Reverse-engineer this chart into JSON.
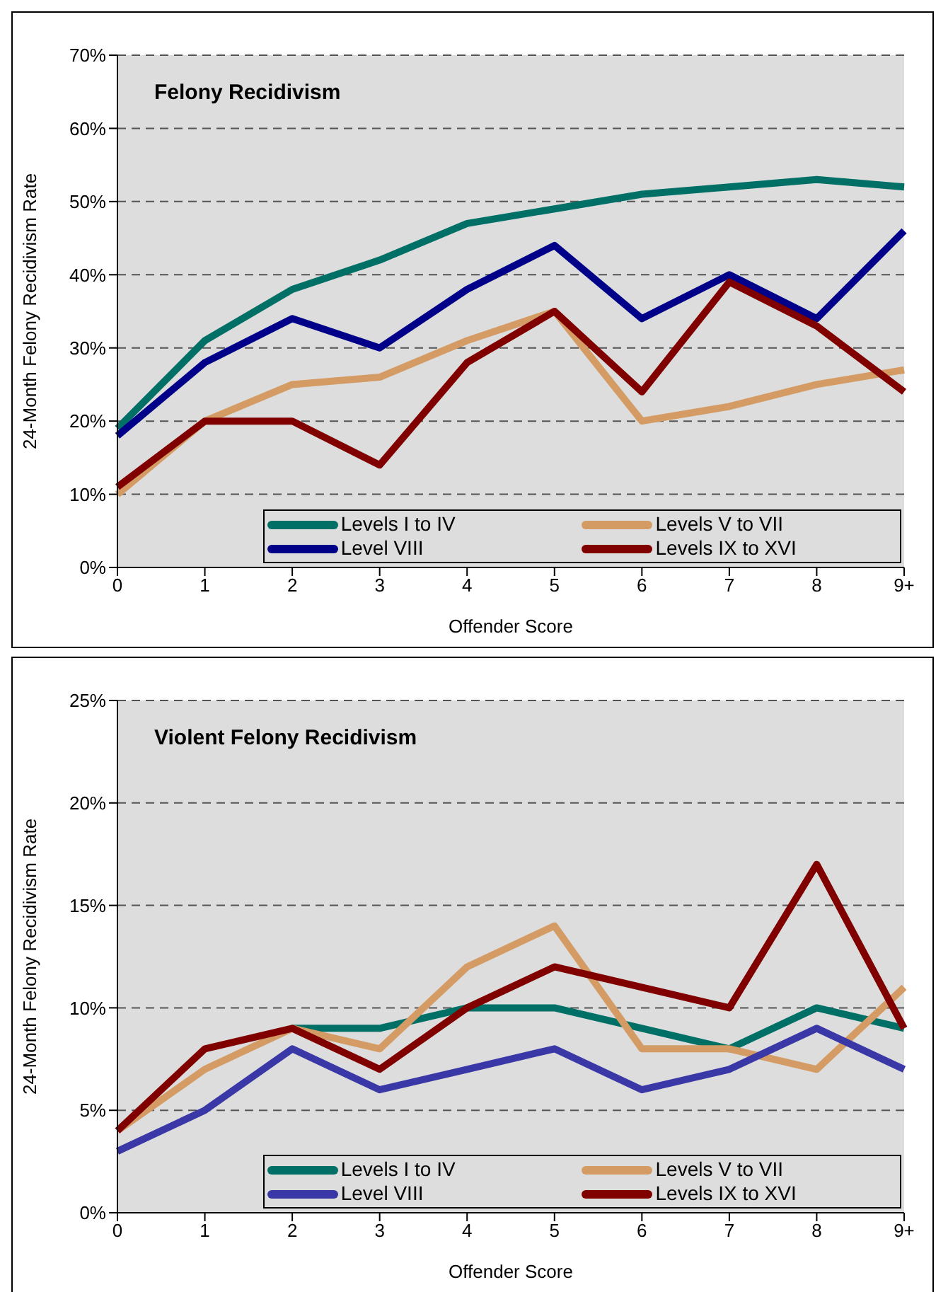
{
  "chart_data": [
    {
      "type": "line",
      "title": "Felony Recidivism",
      "xlabel": "Offender Score",
      "ylabel": "24-Month Felony Recidivism Rate",
      "categories": [
        "0",
        "1",
        "2",
        "3",
        "4",
        "5",
        "6",
        "7",
        "8",
        "9+"
      ],
      "series": [
        {
          "name": "Levels I to IV",
          "color": "#006f66",
          "values": [
            19,
            31,
            38,
            42,
            47,
            49,
            51,
            52,
            53,
            52
          ]
        },
        {
          "name": "Levels V to VII",
          "color": "#d49c64",
          "values": [
            10,
            20,
            25,
            26,
            31,
            35,
            20,
            22,
            25,
            27
          ]
        },
        {
          "name": "Level VIII",
          "color": "#000088",
          "values": [
            18,
            28,
            34,
            30,
            38,
            44,
            34,
            40,
            34,
            46
          ]
        },
        {
          "name": "Levels IX to XVI",
          "color": "#800000",
          "values": [
            11,
            20,
            20,
            14,
            28,
            35,
            24,
            39,
            33,
            24
          ]
        }
      ],
      "ylim": [
        0,
        70
      ],
      "yticks": [
        {
          "value": 0,
          "label": "0%"
        },
        {
          "value": 10,
          "label": "10%"
        },
        {
          "value": 20,
          "label": "20%"
        },
        {
          "value": 30,
          "label": "30%"
        },
        {
          "value": 40,
          "label": "40%"
        },
        {
          "value": 50,
          "label": "50%"
        },
        {
          "value": 60,
          "label": "60%"
        },
        {
          "value": 70,
          "label": "70%"
        }
      ],
      "grid": "y",
      "legend": "bottom right",
      "marker": "none",
      "line_style": "solid"
    },
    {
      "type": "line",
      "title": "Violent Felony Recidivism",
      "xlabel": "Offender Score",
      "ylabel": "24-Month Felony Recidivism Rate",
      "categories": [
        "0",
        "1",
        "2",
        "3",
        "4",
        "5",
        "6",
        "7",
        "8",
        "9+"
      ],
      "series": [
        {
          "name": "Levels I to IV",
          "color": "#006f66",
          "values": [
            null,
            null,
            9,
            9,
            10,
            10,
            9,
            8,
            10,
            9
          ]
        },
        {
          "name": "Levels V to VII",
          "color": "#d49c64",
          "values": [
            4,
            7,
            9,
            8,
            12,
            14,
            8,
            8,
            7,
            11
          ]
        },
        {
          "name": "Level VIII",
          "color": "#3a38a6",
          "values": [
            3,
            5,
            8,
            6,
            7,
            8,
            6,
            7,
            9,
            7
          ]
        },
        {
          "name": "Levels IX to XVI",
          "color": "#800000",
          "values": [
            4,
            8,
            9,
            7,
            10,
            12,
            11,
            10,
            17,
            9
          ]
        }
      ],
      "ylim": [
        0,
        25
      ],
      "yticks": [
        {
          "value": 0,
          "label": "0%"
        },
        {
          "value": 5,
          "label": "5%"
        },
        {
          "value": 10,
          "label": "10%"
        },
        {
          "value": 15,
          "label": "15%"
        },
        {
          "value": 20,
          "label": "20%"
        },
        {
          "value": 25,
          "label": "25%"
        }
      ],
      "grid": "y",
      "legend": "bottom right",
      "marker": "none",
      "line_style": "solid"
    }
  ]
}
